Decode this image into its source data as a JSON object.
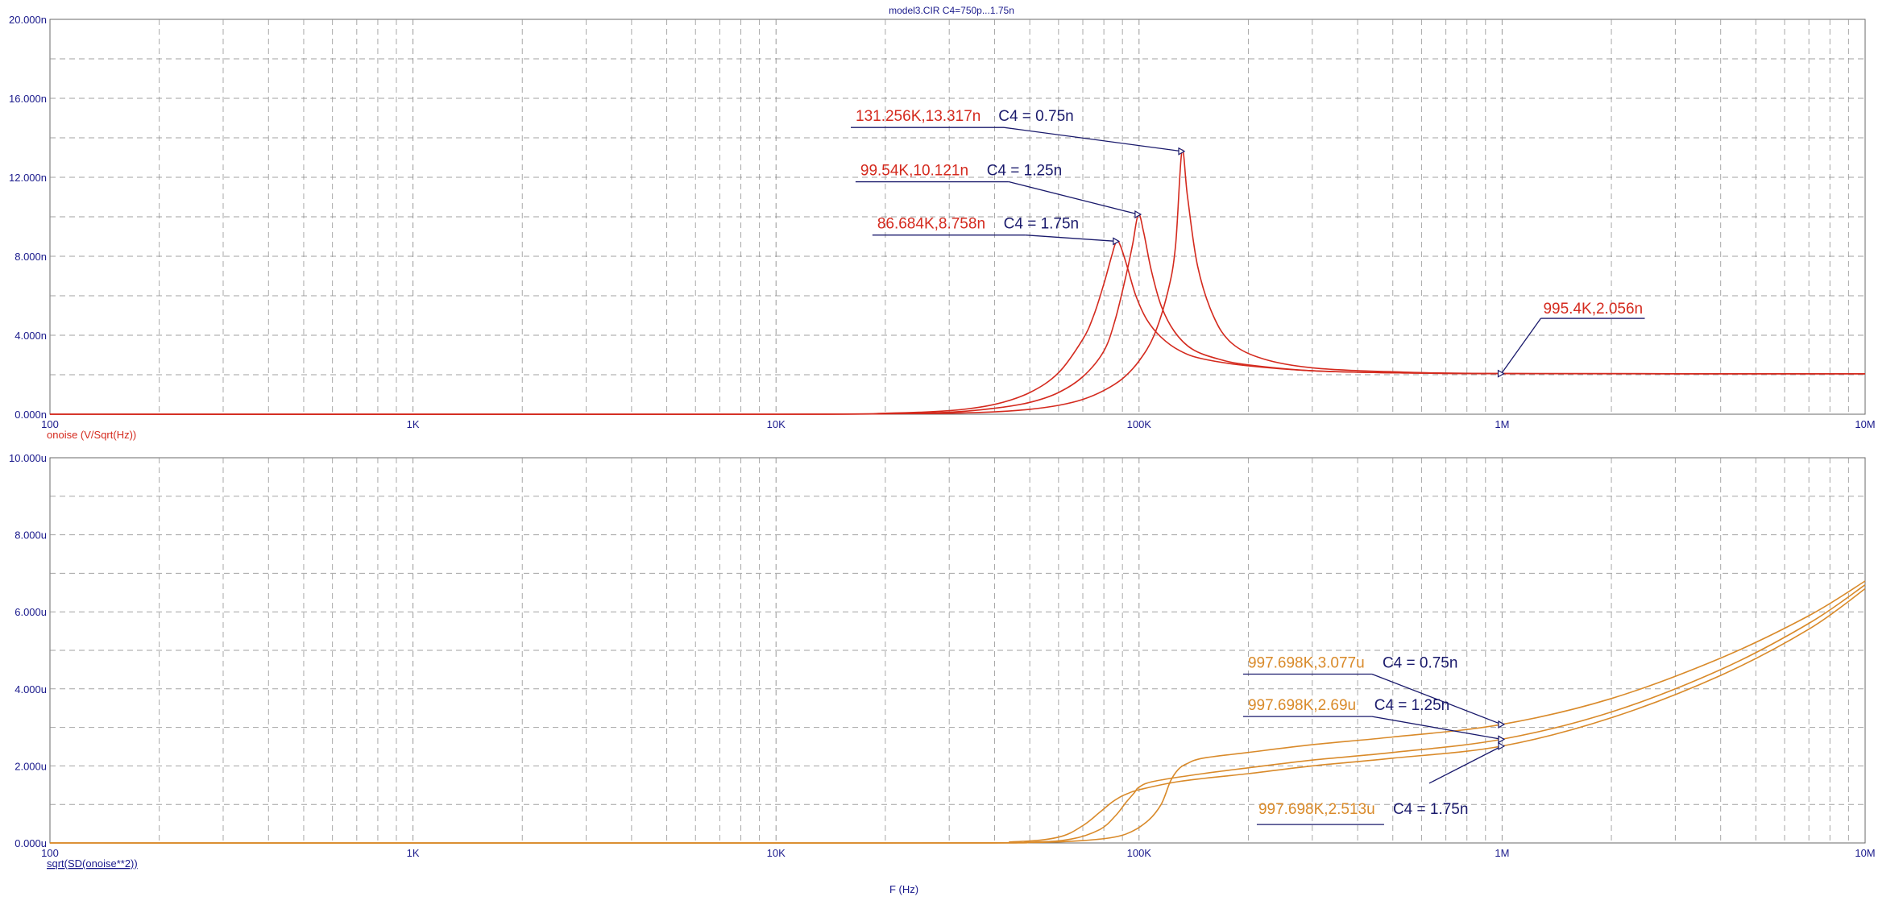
{
  "window": {
    "title": "model3.CIR C4=750p...1.75n"
  },
  "colors": {
    "grid": "#8c8c8c",
    "axis_text": "#1a1a8c",
    "noise_curve": "#d42a1e",
    "sd_curve": "#d98a2a",
    "annotation_blue": "#1a1a6c",
    "annotation_red": "#d42a1e",
    "annotation_orange": "#d98a2a"
  },
  "x_axis_label": "F (Hz)",
  "chart_data": [
    {
      "type": "line",
      "name_label": "onoise (V/Sqrt(Hz))",
      "xscale": "log",
      "xlim": [
        100,
        10000000
      ],
      "ylim": [
        0,
        20
      ],
      "x_ticks": [
        {
          "v": 100,
          "label": "100"
        },
        {
          "v": 1000,
          "label": "1K"
        },
        {
          "v": 10000,
          "label": "10K"
        },
        {
          "v": 100000,
          "label": "100K"
        },
        {
          "v": 1000000,
          "label": "1M"
        },
        {
          "v": 10000000,
          "label": "10M"
        }
      ],
      "y_ticks": [
        {
          "v": 0,
          "label": "0.000n"
        },
        {
          "v": 4,
          "label": "4.000n"
        },
        {
          "v": 8,
          "label": "8.000n"
        },
        {
          "v": 12,
          "label": "12.000n"
        },
        {
          "v": 16,
          "label": "16.000n"
        },
        {
          "v": 20,
          "label": "20.000n"
        }
      ],
      "series": [
        {
          "color": "#d42a1e",
          "x": [
            100,
            10000,
            20000,
            30000,
            40000,
            50000,
            60000,
            70000,
            80000,
            90000,
            100000,
            110000,
            120000,
            126000,
            131256,
            136000,
            145000,
            160000,
            180000,
            220000,
            300000,
            500000,
            1000000,
            10000000
          ],
          "y": [
            0,
            0,
            0.02,
            0.05,
            0.12,
            0.25,
            0.45,
            0.75,
            1.2,
            1.8,
            2.7,
            4.0,
            6.2,
            8.5,
            13.317,
            11.0,
            7.5,
            5.0,
            3.6,
            2.8,
            2.35,
            2.15,
            2.056,
            2.05
          ]
        },
        {
          "color": "#d42a1e",
          "x": [
            100,
            10000,
            20000,
            30000,
            40000,
            50000,
            60000,
            70000,
            80000,
            86000,
            92000,
            96000,
            99540,
            103000,
            108000,
            115000,
            125000,
            140000,
            165000,
            200000,
            300000,
            500000,
            1000000,
            10000000
          ],
          "y": [
            0,
            0,
            0.03,
            0.1,
            0.3,
            0.6,
            1.1,
            1.9,
            3.2,
            4.8,
            7.0,
            8.6,
            10.121,
            9.2,
            7.3,
            5.5,
            4.2,
            3.3,
            2.8,
            2.5,
            2.2,
            2.1,
            2.056,
            2.05
          ]
        },
        {
          "color": "#d42a1e",
          "x": [
            100,
            10000,
            20000,
            30000,
            40000,
            50000,
            60000,
            70000,
            75000,
            80000,
            84000,
            86684,
            89000,
            93000,
            98000,
            105000,
            115000,
            130000,
            150000,
            200000,
            300000,
            500000,
            1000000,
            10000000
          ],
          "y": [
            0,
            0,
            0.05,
            0.18,
            0.5,
            1.1,
            2.1,
            3.8,
            5.0,
            6.6,
            8.0,
            8.758,
            8.5,
            7.4,
            6.0,
            4.8,
            3.9,
            3.2,
            2.8,
            2.45,
            2.2,
            2.1,
            2.056,
            2.05
          ]
        }
      ],
      "annotations": [
        {
          "text": "131.256K,13.317n",
          "param": "C4 = 0.75n",
          "x": 131256,
          "y": 13.317,
          "label_side": "left",
          "label_y": 14.85
        },
        {
          "text": "99.54K,10.121n",
          "param": "C4 = 1.25n",
          "x": 99540,
          "y": 10.121,
          "label_side": "left",
          "label_y": 12.1
        },
        {
          "text": "86.684K,8.758n",
          "param": "C4 = 1.75n",
          "x": 86684,
          "y": 8.758,
          "label_side": "left",
          "label_y": 9.4
        },
        {
          "text": "995.4K,2.056n",
          "param": "",
          "x": 995400,
          "y": 2.056,
          "label_side": "right",
          "label_y": 5.1
        }
      ]
    },
    {
      "type": "line",
      "name_label": "sqrt(SD(onoise**2))",
      "xscale": "log",
      "xlim": [
        100,
        10000000
      ],
      "ylim": [
        0,
        10
      ],
      "x_ticks": [
        {
          "v": 100,
          "label": "100"
        },
        {
          "v": 1000,
          "label": "1K"
        },
        {
          "v": 10000,
          "label": "10K"
        },
        {
          "v": 100000,
          "label": "100K"
        },
        {
          "v": 1000000,
          "label": "1M"
        },
        {
          "v": 10000000,
          "label": "10M"
        }
      ],
      "y_ticks": [
        {
          "v": 0,
          "label": "0.000u"
        },
        {
          "v": 2,
          "label": "2.000u"
        },
        {
          "v": 4,
          "label": "4.000u"
        },
        {
          "v": 6,
          "label": "6.000u"
        },
        {
          "v": 8,
          "label": "8.000u"
        },
        {
          "v": 10,
          "label": "10.000u"
        }
      ],
      "series": [
        {
          "color": "#d98a2a",
          "x": [
            100,
            25000,
            50000,
            70000,
            90000,
            105000,
            115000,
            122000,
            128000,
            135000,
            150000,
            200000,
            300000,
            500000,
            997698,
            2000000,
            4000000,
            7000000,
            10000000
          ],
          "y": [
            0,
            0,
            0.01,
            0.06,
            0.2,
            0.55,
            1.0,
            1.6,
            1.9,
            2.05,
            2.2,
            2.35,
            2.55,
            2.75,
            3.077,
            3.75,
            4.8,
            5.9,
            6.8
          ]
        },
        {
          "color": "#d98a2a",
          "x": [
            100,
            25000,
            50000,
            65000,
            78000,
            86000,
            92000,
            97000,
            100000,
            110000,
            150000,
            200000,
            300000,
            500000,
            997698,
            2000000,
            4000000,
            7000000,
            10000000
          ],
          "y": [
            0,
            0,
            0.02,
            0.1,
            0.35,
            0.7,
            1.05,
            1.3,
            1.45,
            1.6,
            1.8,
            1.95,
            2.15,
            2.35,
            2.69,
            3.4,
            4.5,
            5.7,
            6.7
          ]
        },
        {
          "color": "#d98a2a",
          "x": [
            100,
            25000,
            45000,
            60000,
            70000,
            78000,
            84000,
            89000,
            93000,
            100000,
            130000,
            200000,
            300000,
            500000,
            997698,
            2000000,
            4000000,
            7000000,
            10000000
          ],
          "y": [
            0,
            0,
            0.03,
            0.15,
            0.45,
            0.8,
            1.05,
            1.2,
            1.28,
            1.38,
            1.6,
            1.8,
            2.0,
            2.2,
            2.513,
            3.25,
            4.35,
            5.55,
            6.6
          ]
        }
      ],
      "annotations": [
        {
          "text": "997.698K,3.077u",
          "param": "C4 = 0.75n",
          "x": 997698,
          "y": 3.077,
          "label_side": "left",
          "label_y": 4.55
        },
        {
          "text": "997.698K,2.69u",
          "param": "C4 = 1.25n",
          "x": 997698,
          "y": 2.69,
          "label_side": "left",
          "label_y": 3.45
        },
        {
          "text": "997.698K,2.513u",
          "param": "C4 = 1.75n",
          "x": 997698,
          "y": 2.513,
          "label_side": "leftlow",
          "label_y": 0.75
        }
      ]
    }
  ]
}
